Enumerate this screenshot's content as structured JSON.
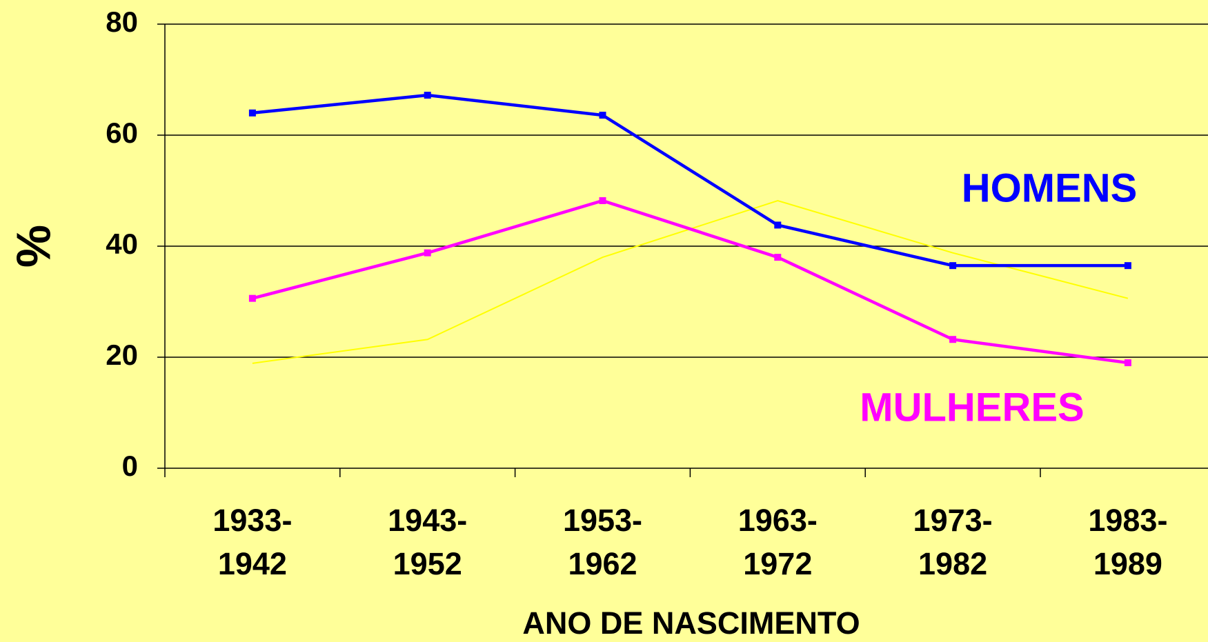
{
  "chart_data": {
    "type": "line",
    "x_label": "ANO DE NASCIMENTO",
    "y_label": "%",
    "categories": [
      "1933-1942",
      "1943-1952",
      "1953-1962",
      "1963-1972",
      "1973-1982",
      "1983-1989"
    ],
    "series": [
      {
        "name": "HOMENS",
        "color": "#0000ff",
        "values": [
          64.0,
          67.2,
          63.6,
          43.8,
          36.5,
          36.5
        ]
      },
      {
        "name": "MULHERES",
        "color": "#ff00ff",
        "values": [
          30.6,
          38.8,
          48.2,
          38.0,
          23.2,
          19.0
        ]
      },
      {
        "color": "#ffff00",
        "values": [
          18.9,
          23.2,
          38.0,
          48.2,
          38.8,
          30.6
        ]
      }
    ],
    "ylim": [
      0,
      80
    ],
    "yticks": [
      0,
      20,
      40,
      60,
      80
    ],
    "grid": true
  }
}
